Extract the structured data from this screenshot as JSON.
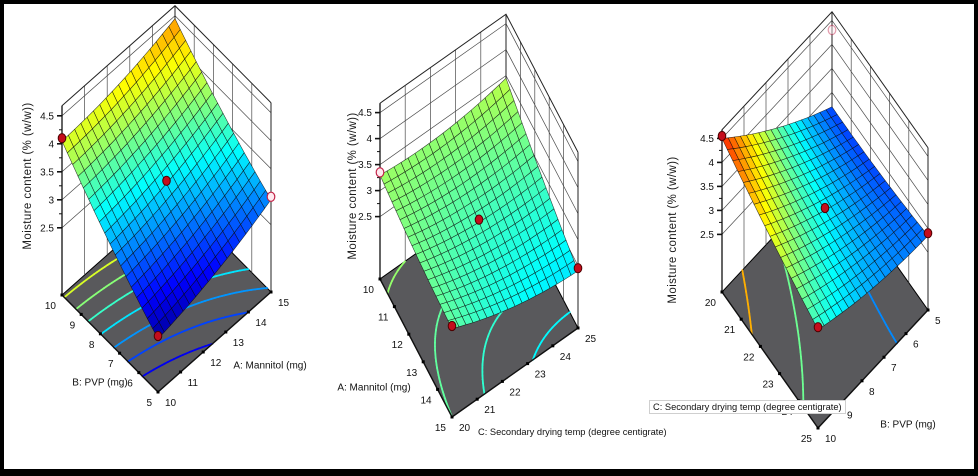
{
  "page": {
    "frame_color": "#000000",
    "background": "#ffffff"
  },
  "style": {
    "floor_color": "#59595c",
    "floor_edge_color": "#000000",
    "wall_line_color": "#4a4a4a",
    "box_edge_color": "#222222",
    "mesh_line_color": "#0a0a0a",
    "tick_text_color": "#111111",
    "solid_point_color": "#c40d1c",
    "solid_point_edge": "#4d0000",
    "open_point_fill": "#ffe9ef",
    "open_point_edge": "#c22348"
  },
  "chart_data": [
    {
      "type": "surface3d",
      "z_axis": {
        "label": "Moisture content  (% (w/w))",
        "ticks": [
          "2.5",
          "3",
          "3.5",
          "4",
          "4.5"
        ],
        "tick_values": [
          2.5,
          3,
          3.5,
          4,
          4.5
        ],
        "minor_step": 0.25,
        "range": [
          2.5,
          4.5
        ]
      },
      "left_axis": {
        "label": "B: PVP (mg)",
        "ticks": [
          "10",
          "9",
          "8",
          "7",
          "6",
          "5"
        ]
      },
      "right_axis": {
        "label": "A: Mannitol (mg)",
        "ticks": [
          "10",
          "11",
          "12",
          "13",
          "14",
          "15"
        ]
      },
      "surface": {
        "front": 2.25,
        "right": 2.95,
        "left": 4.05,
        "back": 4.45,
        "bow_u": -0.35,
        "bow_v": -0.3
      },
      "color_domain": [
        2.15,
        5.3
      ],
      "contour_levels": [
        2.5,
        2.75,
        3.0,
        3.25,
        3.5,
        3.75,
        4.0
      ],
      "points": [
        {
          "u": 0,
          "v": 1,
          "style": "solid"
        },
        {
          "u": 0.5,
          "v": 0.5,
          "style": "solid"
        },
        {
          "u": 0,
          "v": 0,
          "style": "solid"
        },
        {
          "u": 1,
          "v": 0,
          "style": "open"
        }
      ]
    },
    {
      "type": "surface3d",
      "z_axis": {
        "label": "Moisture content  (% (w/w))",
        "ticks": [
          "2.5",
          "3",
          "3.5",
          "4",
          "4.5"
        ],
        "tick_values": [
          2.5,
          3,
          3.5,
          4,
          4.5
        ],
        "minor_step": 0.25,
        "range": [
          2.5,
          4.5
        ]
      },
      "left_axis": {
        "label": "A: Mannitol (mg)",
        "ticks": [
          "10",
          "11",
          "12",
          "13",
          "14",
          "15"
        ]
      },
      "right_axis": {
        "label": "C: Secondary drying temp (degree centigrate)",
        "ticks": [
          "20",
          "21",
          "22",
          "23",
          "24",
          "25"
        ]
      },
      "surface": {
        "front": 3.0,
        "right": 2.4,
        "left": 3.3,
        "back": 3.45,
        "bow_u": -0.5,
        "bow_v": -0.2
      },
      "color_domain": [
        0.65,
        5.65
      ],
      "contour_levels": [
        2.5,
        2.75,
        3.0,
        3.25
      ],
      "points": [
        {
          "u": 0,
          "v": 1,
          "style": "open"
        },
        {
          "u": 0.5,
          "v": 0.5,
          "style": "solid"
        },
        {
          "u": 0,
          "v": 0,
          "style": "solid"
        },
        {
          "u": 1,
          "v": 0,
          "style": "solid"
        }
      ]
    },
    {
      "type": "surface3d",
      "z_axis": {
        "label": "Moisture content  (% (w/w))",
        "ticks": [
          "2.5",
          "3",
          "3.5",
          "4",
          "4.5"
        ],
        "tick_values": [
          2.5,
          3,
          3.5,
          4,
          4.5
        ],
        "minor_step": 0.25,
        "range": [
          2.5,
          4.5
        ]
      },
      "left_axis": {
        "label": "C: Secondary drying temp (degree centigrate)",
        "ticks": [
          "20",
          "21",
          "22",
          "23",
          "24",
          "25"
        ]
      },
      "right_axis": {
        "label": "B: PVP (mg)",
        "ticks": [
          "10",
          "9",
          "8",
          "7",
          "6",
          "5"
        ]
      },
      "surface": {
        "front": 3.35,
        "right": 2.85,
        "left": 4.5,
        "back": 2.7,
        "bow_u": -0.45,
        "bow_v": -0.2
      },
      "color_domain": [
        2.2,
        4.9
      ],
      "contour_levels": [
        2.9,
        3.5,
        4.1
      ],
      "points": [
        {
          "u": 0,
          "v": 1,
          "style": "solid"
        },
        {
          "u": 0.5,
          "v": 0.5,
          "style": "solid"
        },
        {
          "u": 0,
          "v": 0,
          "style": "solid"
        },
        {
          "u": 1,
          "v": 0,
          "style": "solid"
        },
        {
          "u": 1,
          "v": 1,
          "style": "open",
          "z": 4.3,
          "faint": true
        }
      ]
    }
  ]
}
